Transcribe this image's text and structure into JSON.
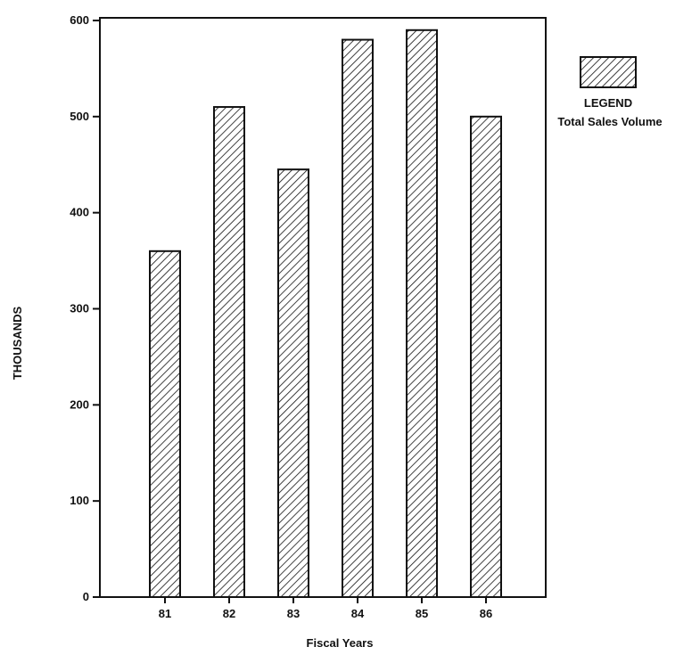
{
  "chart_data": {
    "type": "bar",
    "categories": [
      "81",
      "82",
      "83",
      "84",
      "85",
      "86"
    ],
    "series": [
      {
        "name": "Total Sales Volume",
        "values": [
          360,
          510,
          445,
          580,
          590,
          500
        ]
      }
    ],
    "xlabel": "Fiscal Years",
    "ylabel": "THOUSANDS",
    "ylim": [
      0,
      600
    ],
    "yticks": [
      0,
      100,
      200,
      300,
      400,
      500,
      600
    ],
    "grid": false,
    "legend": {
      "title": "LEGEND",
      "label": "Total Sales Volume",
      "placement": "right"
    },
    "bar_pattern": "diagonal-hatch",
    "colors": {
      "ink": "#111111",
      "background": "#ffffff"
    }
  }
}
